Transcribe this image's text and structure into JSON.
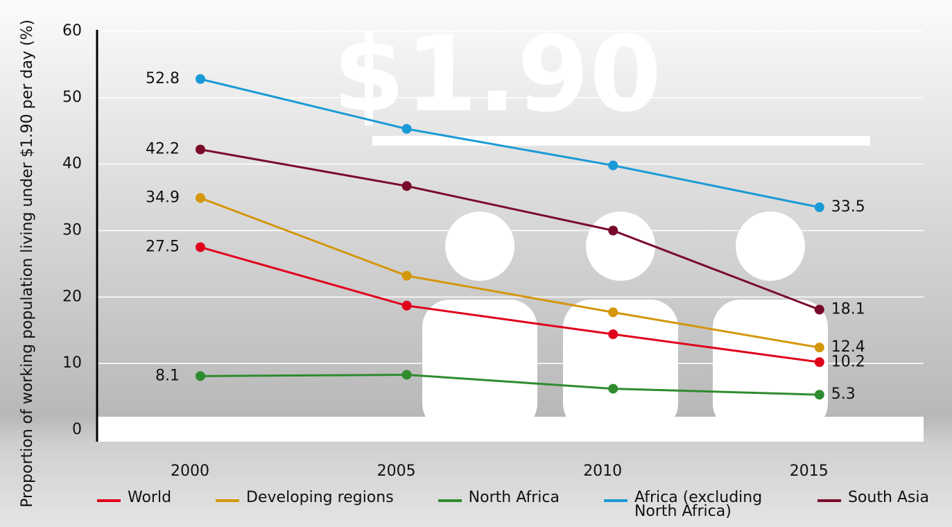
{
  "chart_data": {
    "type": "line",
    "watermark": "$1.90",
    "y_label": "Proportion of working population living under $1.90 per day (%)",
    "categories": [
      "2000",
      "2005",
      "2010",
      "2015"
    ],
    "series": [
      {
        "name": "World",
        "color": "#e0001b",
        "values": [
          27.5,
          18.7,
          14.4,
          10.2
        ]
      },
      {
        "name": "Developing regions",
        "color": "#d4960a",
        "values": [
          34.9,
          23.2,
          17.7,
          12.4
        ]
      },
      {
        "name": "North Africa",
        "color": "#2e8b2e",
        "values": [
          8.1,
          8.3,
          6.2,
          5.3
        ]
      },
      {
        "name": "Africa (excluding North Africa)",
        "color": "#1a9ad6",
        "values": [
          52.8,
          45.3,
          39.8,
          33.5
        ]
      },
      {
        "name": "South Asia",
        "color": "#7a0a2a",
        "values": [
          42.2,
          36.7,
          30.0,
          18.1
        ]
      }
    ],
    "ylim": [
      0,
      60
    ],
    "yticks": [
      0,
      10,
      20,
      30,
      40,
      50,
      60
    ],
    "grid": true
  }
}
